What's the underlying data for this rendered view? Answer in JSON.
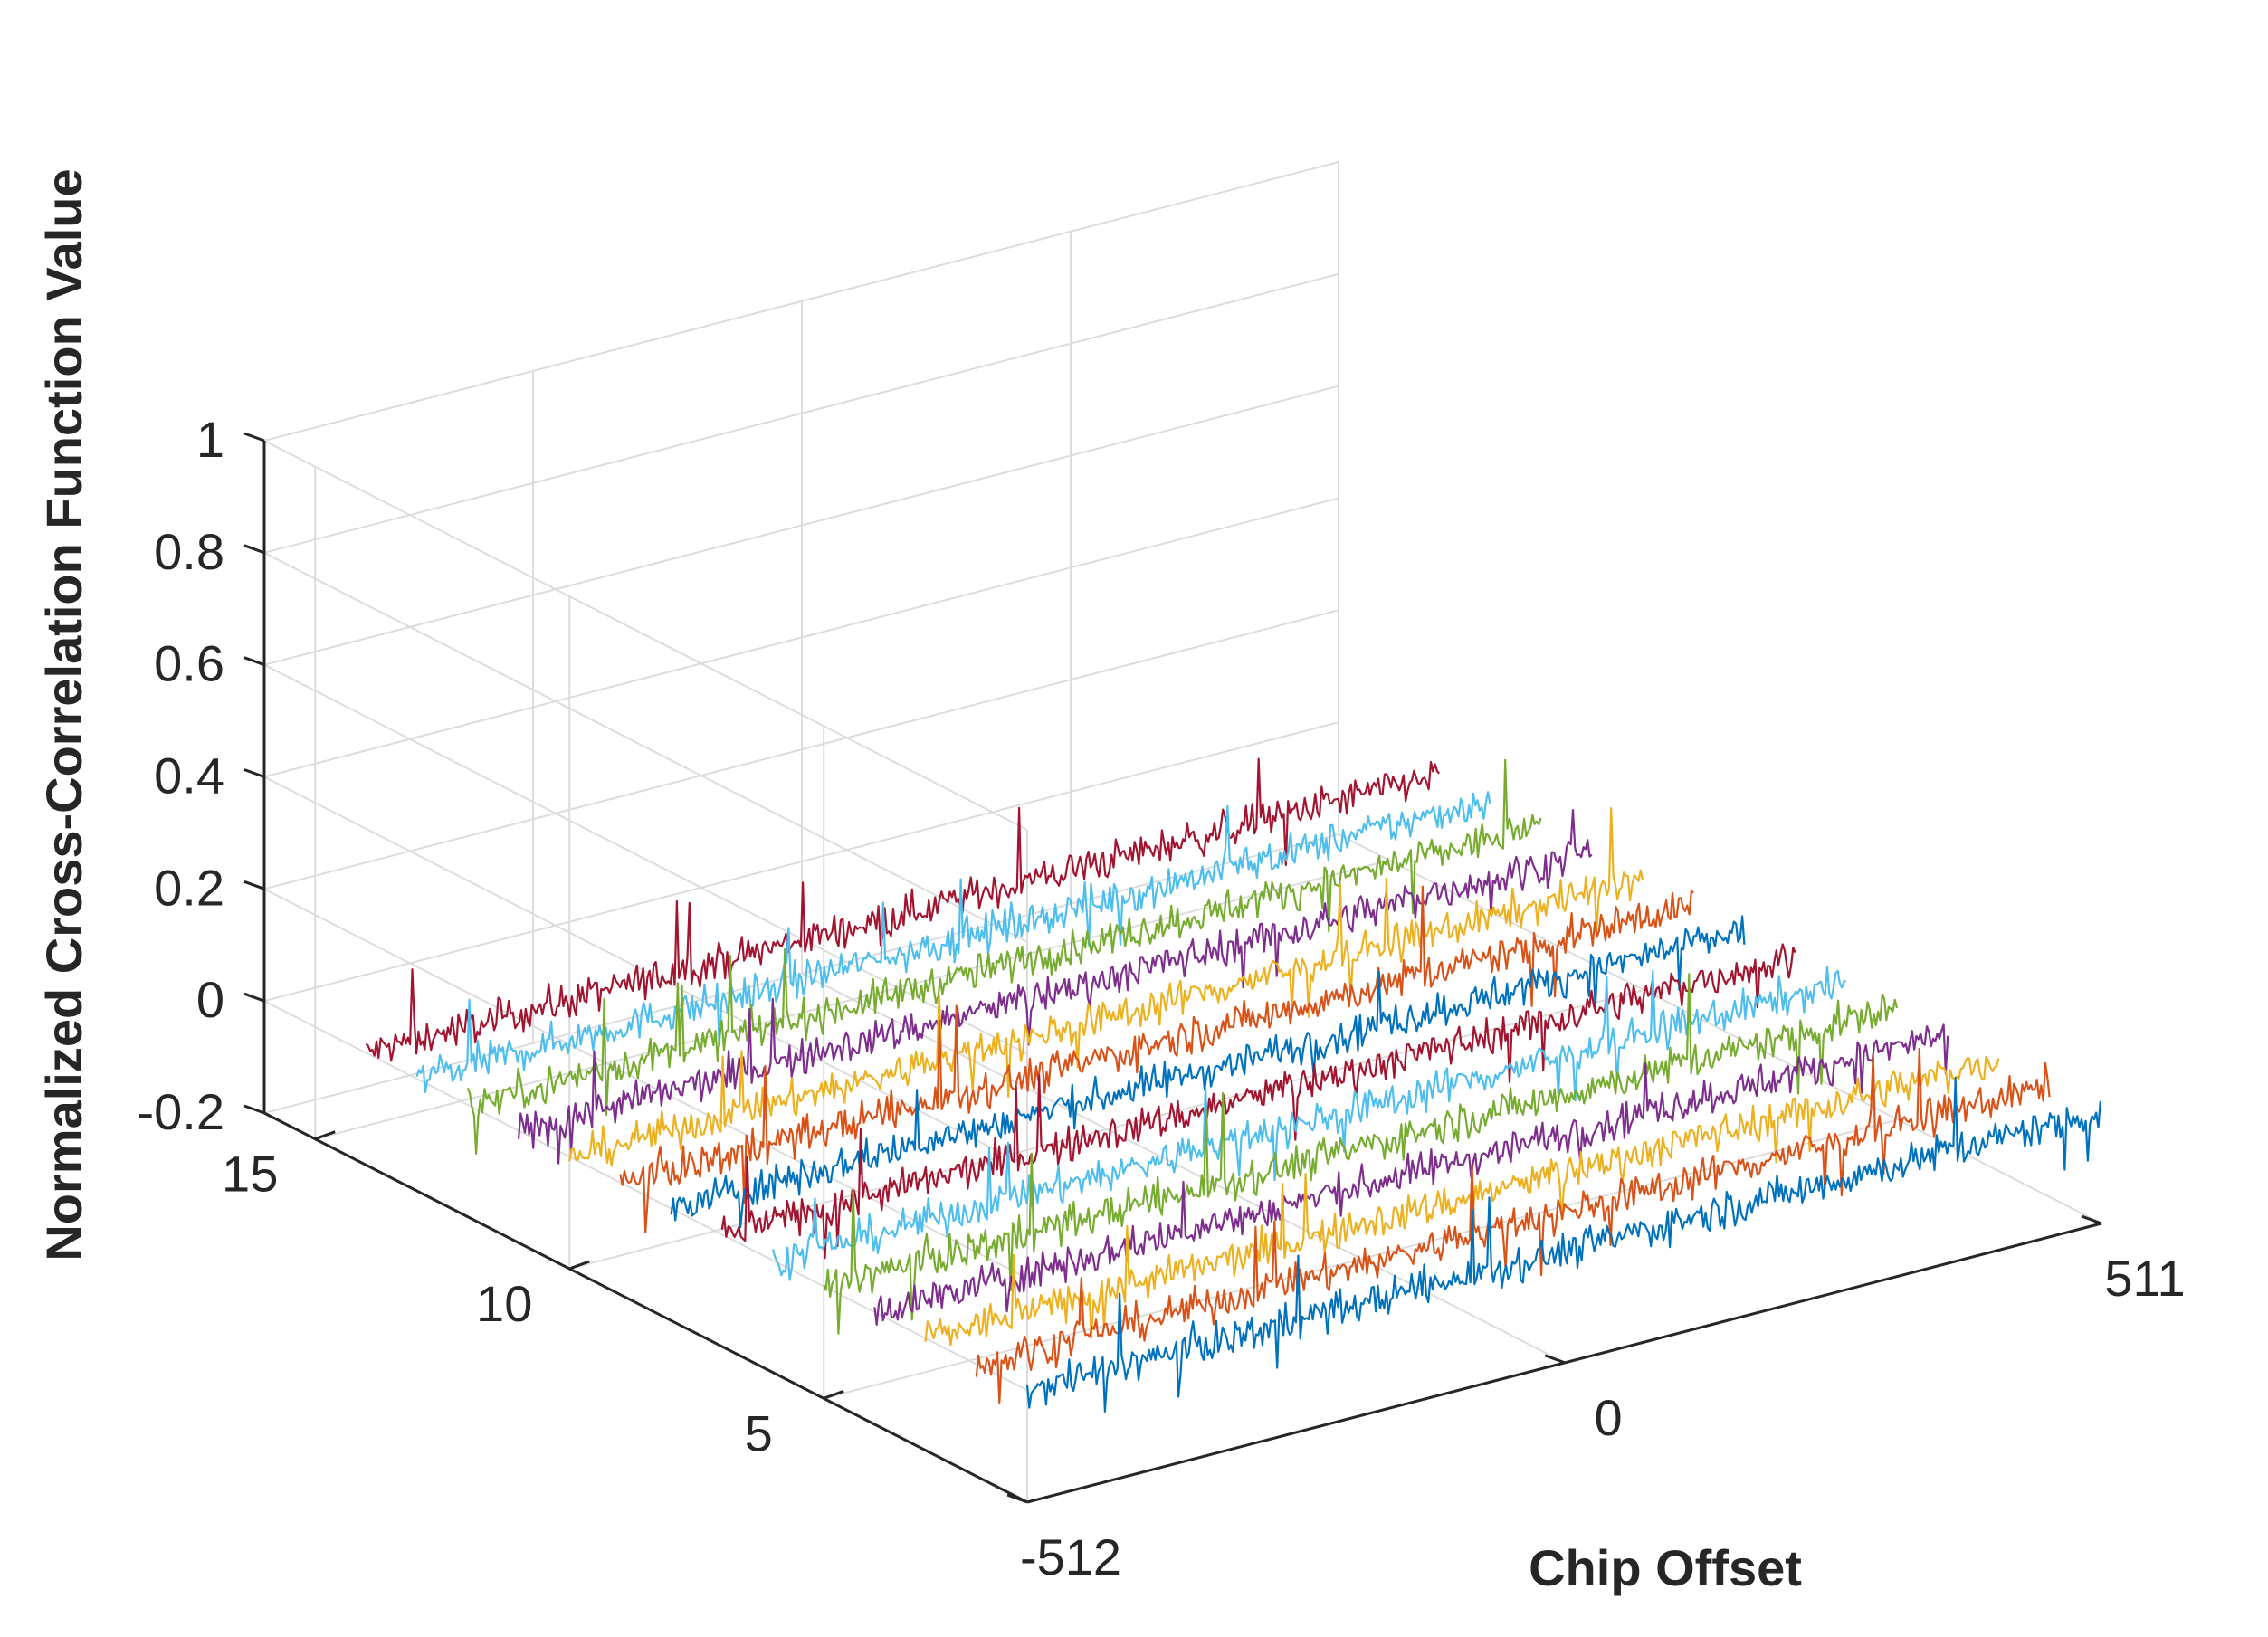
{
  "chart_data": {
    "type": "line",
    "view": "3d-waterfall",
    "title": "",
    "xlabel": "Chip Offset",
    "ylabel": "",
    "zlabel": "Normalized Cross-Correlation Function Value",
    "xlim": [
      -512,
      511
    ],
    "ylim": [
      1,
      16
    ],
    "zlim": [
      -0.2,
      1
    ],
    "x_ticks": [
      "-512",
      "0",
      "511"
    ],
    "y_ticks": [
      "5",
      "10",
      "15"
    ],
    "z_ticks": [
      "-0.2",
      "0",
      "0.2",
      "0.4",
      "0.6",
      "0.8",
      "1"
    ],
    "grid": true,
    "legend": "none",
    "series_count": 14,
    "series_index": [
      1,
      2,
      3,
      4,
      5,
      6,
      7,
      8,
      9,
      10,
      11,
      12,
      13,
      14
    ],
    "series_value_range": [
      -0.1,
      0.1
    ],
    "series_peak_values": [
      0.13,
      0.15,
      0.12,
      0.11,
      0.16,
      0.13,
      0.14,
      0.12,
      0.16,
      0.14,
      0.12,
      0.15,
      0.13,
      0.14
    ],
    "colors": [
      "#0072BD",
      "#D95319",
      "#EDB120",
      "#7E2F8E",
      "#77AC30",
      "#4DBEEE",
      "#A2142F"
    ]
  }
}
